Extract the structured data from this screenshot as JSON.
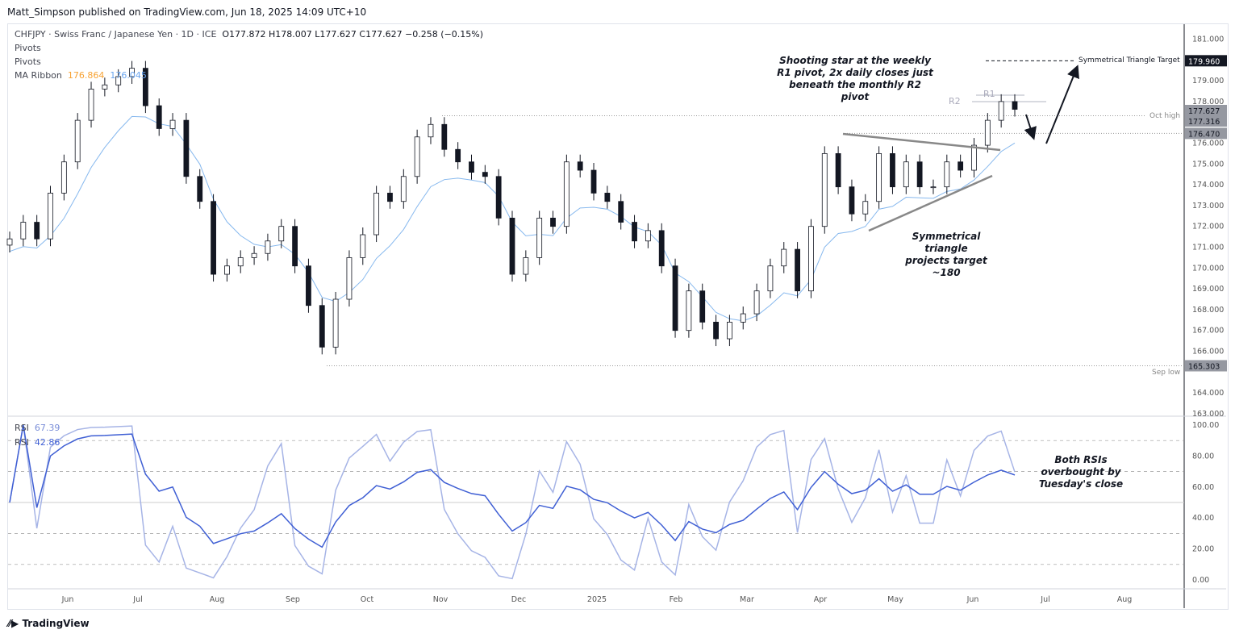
{
  "header": {
    "published": "Matt_Simpson published on TradingView.com, Jun 18, 2025 14:09 UTC+10"
  },
  "legend": {
    "symbol": "CHFJPY · Swiss Franc / Japanese Yen · 1D · ICE",
    "ohlc": "O177.872  H178.007  L177.627  C177.627  −0.258 (−0.15%)",
    "pivots1": "Pivots",
    "pivots2": "Pivots",
    "ma_label": "MA Ribbon",
    "ma_fast": "176.864",
    "ma_slow": "176.045",
    "rsi1_label": "RSI",
    "rsi1_value": "67.39",
    "rsi2_label": "RSI",
    "rsi2_value": "42.86"
  },
  "annotations": {
    "shooting_star": "Shooting star at the weekly R1 pivot, 2x daily closes just beneath the monthly R2 pivot",
    "triangle": "Symmetrical triangle projects target ~180",
    "rsi": "Both RSIs overbought by Tuesday's close",
    "target": "Symmetrical Triangle Target",
    "oct_high": "Oct high",
    "sep_low": "Sep low",
    "r1": "R1",
    "r2": "R2"
  },
  "colors": {
    "ma_fast": "#f7a233",
    "ma_slow": "#86b8ee",
    "rsi_fast": "#a6b4e6",
    "rsi_slow": "#3f5fd4"
  },
  "footer": {
    "brand": "TradingView"
  },
  "chart_data": {
    "type": "candlestick",
    "price_axis": {
      "min": 163,
      "max": 181,
      "ticks": [
        "181.000",
        "179.000",
        "178.000",
        "176.000",
        "175.000",
        "174.000",
        "173.000",
        "172.000",
        "171.000",
        "170.000",
        "169.000",
        "168.000",
        "167.000",
        "166.000",
        "164.000",
        "163.000"
      ]
    },
    "price_labels": [
      {
        "value": 179.96,
        "text": "179.960",
        "style": "black"
      },
      {
        "value": 177.627,
        "text": "177.627",
        "style": "grey"
      },
      {
        "value": 177.316,
        "text": "177.316",
        "style": "grey"
      },
      {
        "value": 176.47,
        "text": "176.470",
        "style": "grey"
      },
      {
        "value": 165.303,
        "text": "165.303",
        "style": "grey"
      }
    ],
    "time_axis": [
      "Jun",
      "Jul",
      "Aug",
      "Sep",
      "Oct",
      "Nov",
      "Dec",
      "2025",
      "Feb",
      "Mar",
      "Apr",
      "May",
      "Jun",
      "Jul",
      "Aug"
    ],
    "close": [
      171.4,
      172.2,
      171.4,
      173.6,
      175.1,
      177.1,
      178.6,
      178.8,
      179.2,
      179.6,
      177.8,
      176.7,
      177.1,
      174.4,
      173.2,
      169.7,
      170.1,
      170.5,
      170.7,
      171.3,
      172.0,
      170.1,
      168.2,
      166.2,
      168.5,
      170.5,
      171.6,
      173.6,
      173.2,
      174.4,
      176.3,
      176.9,
      175.7,
      175.1,
      174.6,
      174.4,
      172.4,
      169.7,
      170.5,
      172.4,
      172.0,
      175.1,
      174.7,
      173.6,
      173.2,
      172.2,
      171.3,
      171.8,
      170.1,
      167.0,
      168.9,
      167.4,
      166.6,
      167.4,
      167.8,
      168.9,
      170.1,
      170.9,
      168.9,
      172.0,
      175.5,
      173.9,
      172.6,
      173.2,
      175.5,
      173.9,
      175.1,
      173.9,
      173.9,
      175.1,
      174.7,
      175.9,
      177.1,
      178.0,
      177.627
    ],
    "levels": {
      "target": 179.96,
      "oct_high": 177.316,
      "resistance": 176.47,
      "sep_low": 165.303,
      "r1": 178.3,
      "r2": 178.0
    },
    "rsi_axis": {
      "min": 0,
      "max": 100,
      "ticks": [
        "100.00",
        "80.00",
        "60.00",
        "40.00",
        "20.00",
        "0.00"
      ],
      "bands": [
        90,
        70,
        50,
        30,
        10
      ]
    }
  }
}
